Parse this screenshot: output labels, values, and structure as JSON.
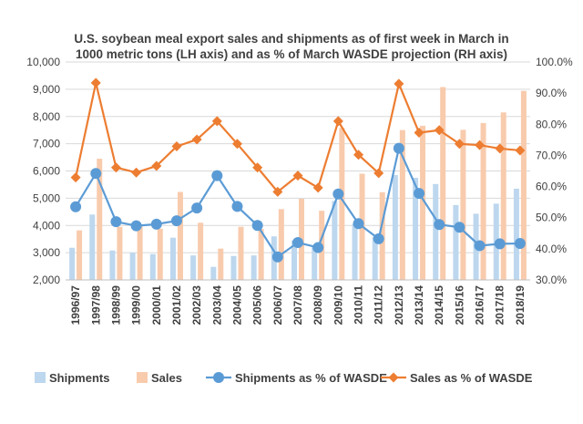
{
  "chart_data": {
    "type": "bar",
    "title": "U.S. soybean meal export sales and shipments as of first week in March in 1000 metric tons (LH axis) and as % of March WASDE projection (RH axis)",
    "title_lines": [
      "U.S. soybean meal export sales and shipments as of first week in March in",
      "1000 metric tons (LH axis) and as % of March WASDE projection (RH axis)"
    ],
    "categories": [
      "1996/97",
      "1997/98",
      "1998/99",
      "1999/00",
      "2000/01",
      "2001/02",
      "2002/03",
      "2003/04",
      "2004/05",
      "2005/06",
      "2006/07",
      "2007/08",
      "2008/09",
      "2009/10",
      "2010/11",
      "2011/12",
      "2012/13",
      "2013/14",
      "2014/15",
      "2015/16",
      "2016/17",
      "2017/18",
      "2018/19"
    ],
    "left_axis": {
      "ylim": [
        2000,
        10000
      ],
      "ticks": [
        2000,
        3000,
        4000,
        5000,
        6000,
        7000,
        8000,
        9000,
        10000
      ],
      "tick_labels": [
        "2,000",
        "3,000",
        "4,000",
        "5,000",
        "6,000",
        "7,000",
        "8,000",
        "9,000",
        "10,000"
      ]
    },
    "right_axis": {
      "ylim": [
        30,
        100
      ],
      "ticks": [
        30,
        40,
        50,
        60,
        70,
        80,
        90,
        100
      ],
      "tick_labels": [
        "30.0%",
        "40.0%",
        "50.0%",
        "60.0%",
        "70.0%",
        "80.0%",
        "90.0%",
        "100.0%"
      ]
    },
    "grid": true,
    "legend_position": "bottom",
    "series": [
      {
        "name": "Shipments",
        "kind": "bar",
        "axis": "left",
        "color": "#bdd7ee",
        "values": [
          3180,
          4400,
          3080,
          3000,
          2950,
          3550,
          2900,
          2480,
          2880,
          2900,
          3600,
          3450,
          3200,
          4900,
          4050,
          3580,
          5850,
          5750,
          5520,
          4750,
          4430,
          4800,
          5350
        ]
      },
      {
        "name": "Sales",
        "kind": "bar",
        "axis": "left",
        "color": "#f8cbad",
        "values": [
          3820,
          6450,
          3950,
          3980,
          3880,
          5230,
          4100,
          3150,
          3950,
          3870,
          4600,
          4980,
          4540,
          7580,
          5900,
          5220,
          7500,
          7660,
          9080,
          7510,
          7760,
          8150,
          8940
        ]
      },
      {
        "name": "Shipments as % of WASDE",
        "kind": "line",
        "axis": "right",
        "color": "#5b9bd5",
        "marker": "circle",
        "values": [
          53.5,
          64.2,
          48.7,
          47.4,
          47.9,
          49.0,
          53.1,
          63.5,
          53.6,
          47.5,
          37.4,
          42.0,
          40.4,
          57.6,
          48.1,
          43.2,
          72.3,
          57.8,
          47.8,
          46.9,
          41.0,
          41.6,
          41.7
        ]
      },
      {
        "name": "Sales as % of WASDE",
        "kind": "line",
        "axis": "right",
        "color": "#ed7d31",
        "marker": "diamond",
        "values": [
          62.9,
          93.3,
          66.1,
          64.5,
          66.6,
          72.9,
          75.1,
          81.0,
          73.7,
          66.1,
          58.3,
          63.5,
          59.6,
          81.0,
          70.2,
          64.3,
          93.0,
          77.3,
          78.1,
          73.7,
          73.3,
          72.2,
          71.6
        ]
      }
    ]
  }
}
